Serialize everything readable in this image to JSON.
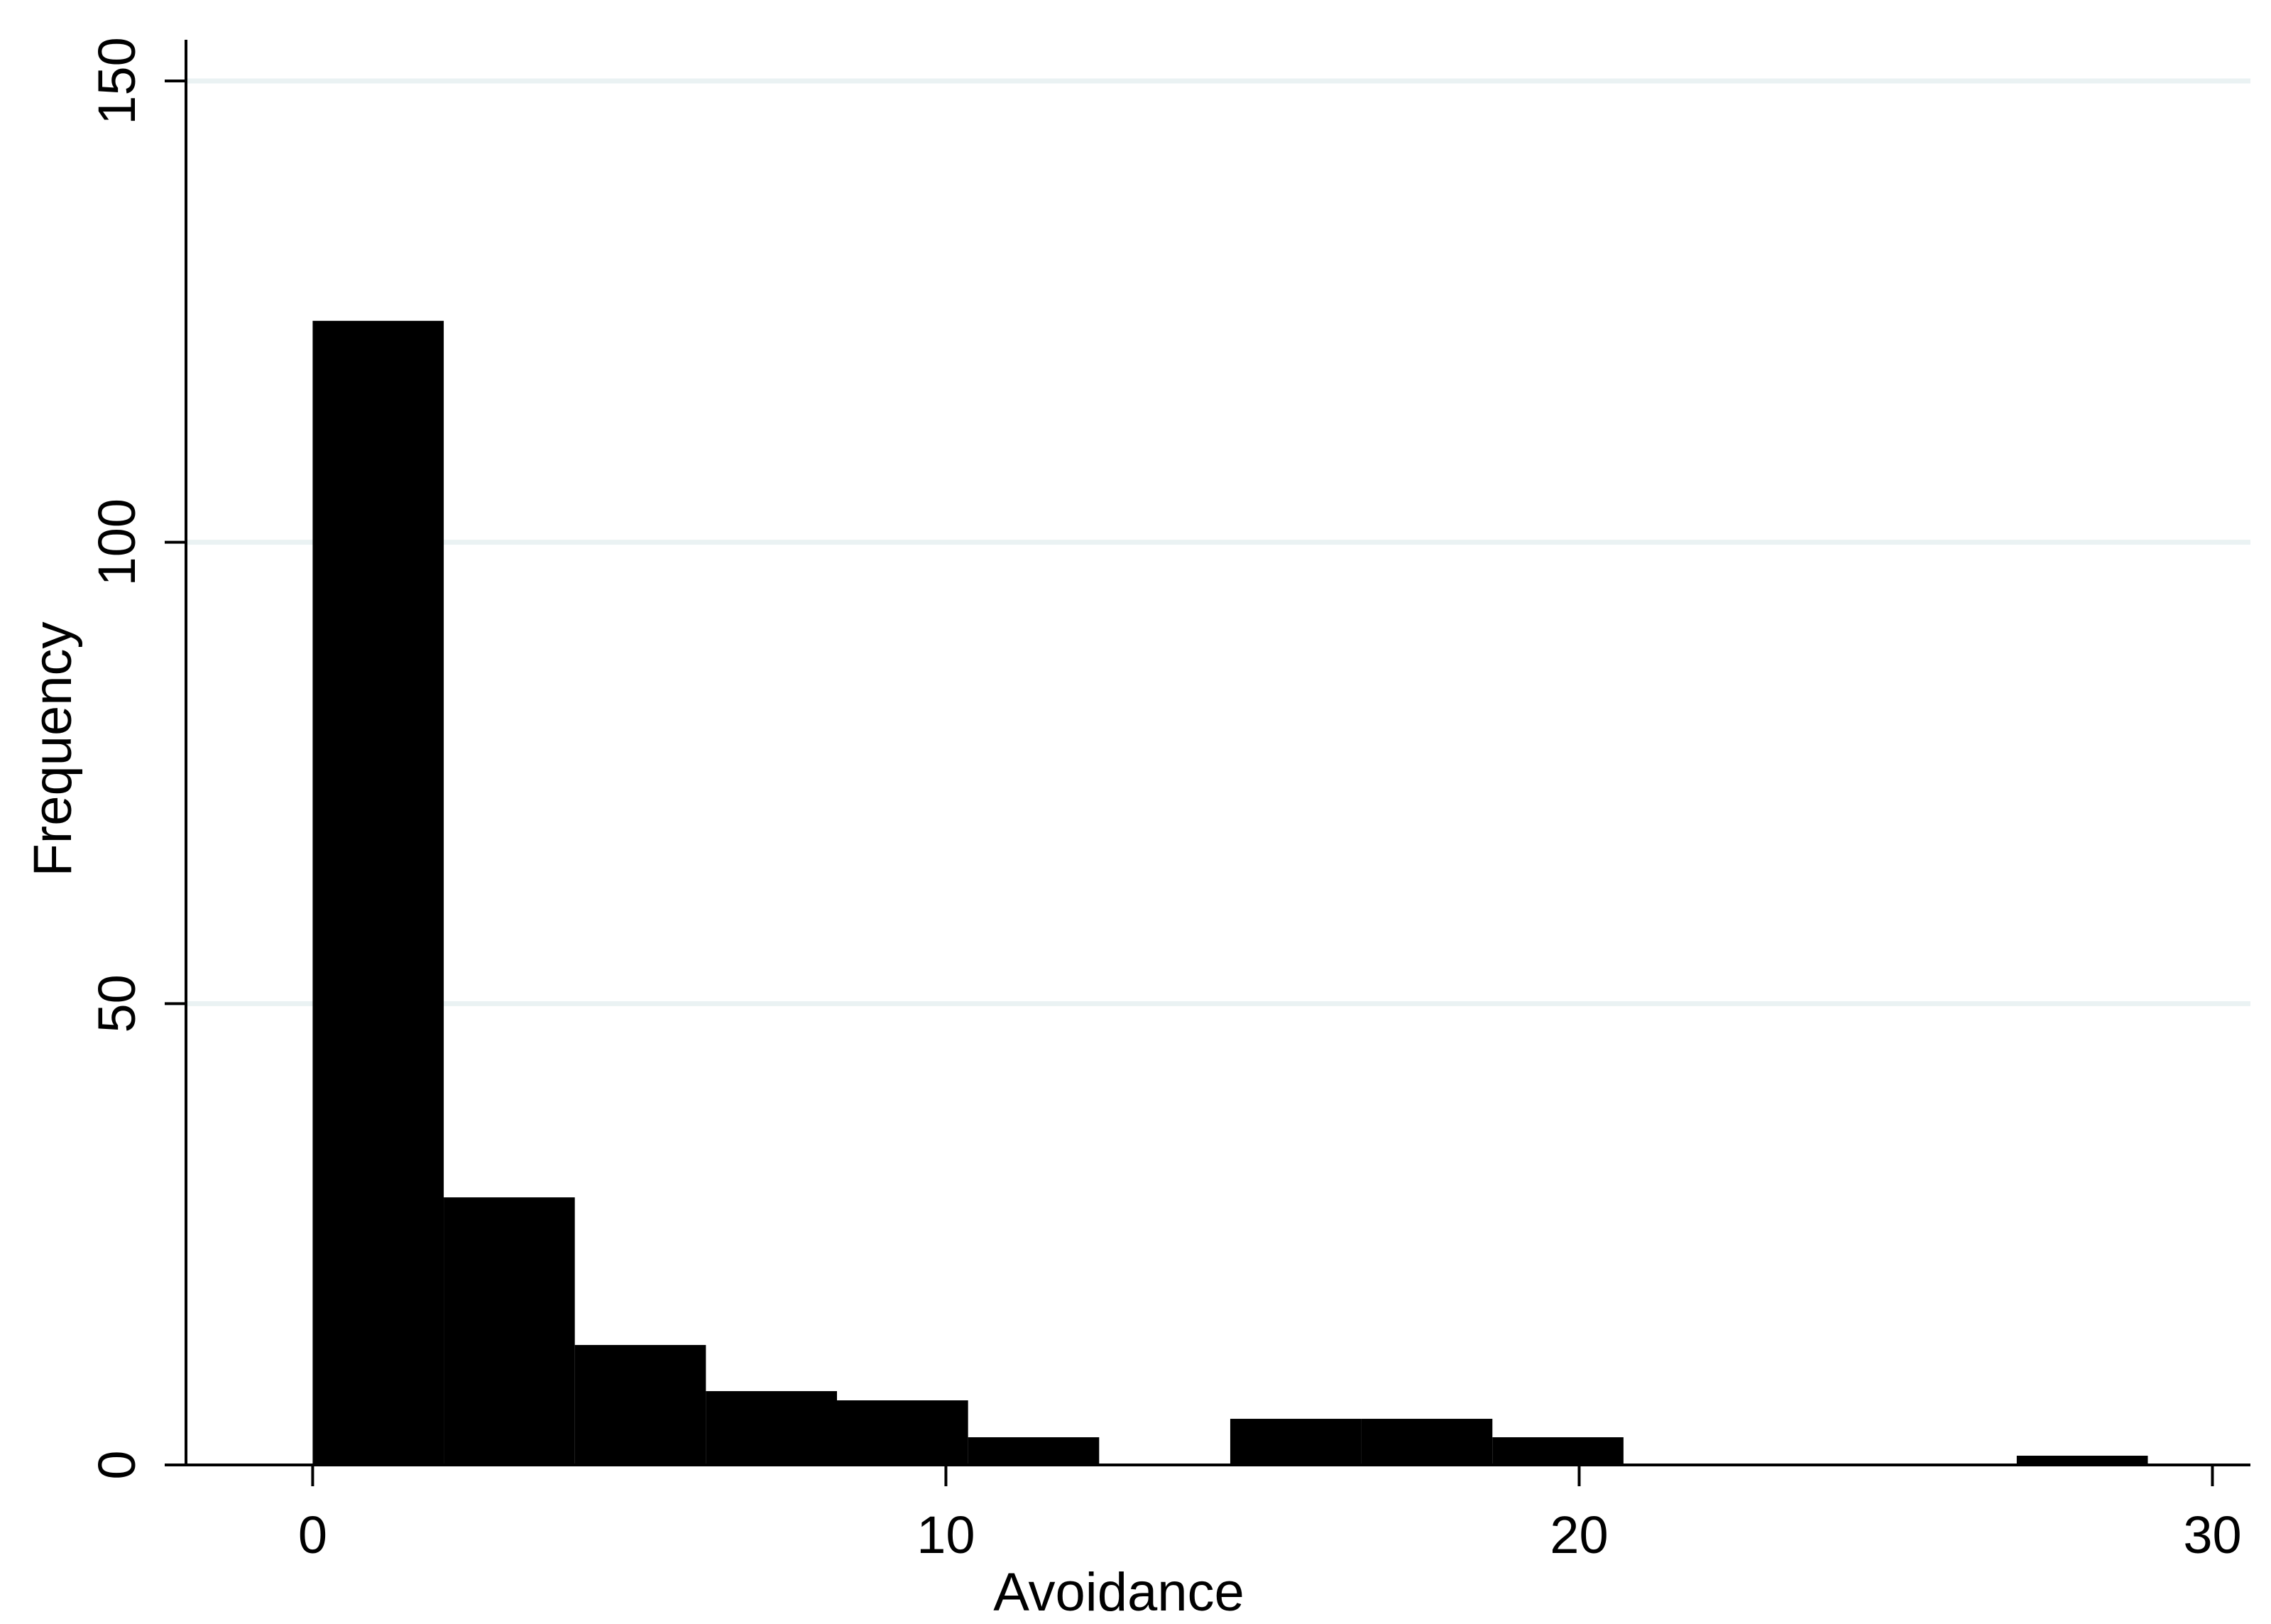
{
  "chart_data": {
    "type": "bar",
    "subtype": "histogram",
    "xlabel": "Avoidance",
    "ylabel": "Frequency",
    "xlim": [
      -2,
      30.6
    ],
    "ylim": [
      0,
      154
    ],
    "xticks": [
      0,
      10,
      20,
      30
    ],
    "yticks": [
      0,
      50,
      100,
      150
    ],
    "grid": {
      "horizontal": true,
      "vertical": false
    },
    "bar_color": "#000000",
    "grid_color": "#eaf2f3",
    "bins": [
      {
        "start": 0.0,
        "end": 2.07,
        "value": 124
      },
      {
        "start": 2.07,
        "end": 4.14,
        "value": 29
      },
      {
        "start": 4.14,
        "end": 6.21,
        "value": 13
      },
      {
        "start": 6.21,
        "end": 8.28,
        "value": 8
      },
      {
        "start": 8.28,
        "end": 10.35,
        "value": 7
      },
      {
        "start": 10.35,
        "end": 12.42,
        "value": 3
      },
      {
        "start": 12.42,
        "end": 14.49,
        "value": 0
      },
      {
        "start": 14.49,
        "end": 16.56,
        "value": 5
      },
      {
        "start": 16.56,
        "end": 18.63,
        "value": 5
      },
      {
        "start": 18.63,
        "end": 20.7,
        "value": 3
      },
      {
        "start": 20.7,
        "end": 22.77,
        "value": 0
      },
      {
        "start": 22.77,
        "end": 24.84,
        "value": 0
      },
      {
        "start": 24.84,
        "end": 26.91,
        "value": 0
      },
      {
        "start": 26.91,
        "end": 28.98,
        "value": 1
      }
    ]
  }
}
